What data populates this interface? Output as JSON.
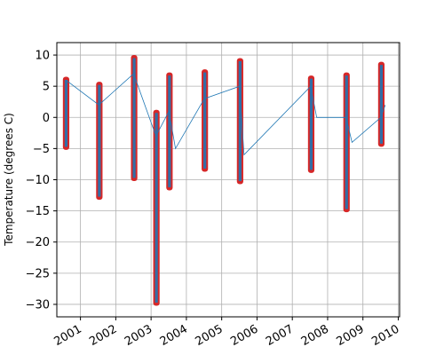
{
  "chart_data": {
    "type": "scatter",
    "title": "",
    "xlabel": "",
    "ylabel": "Temperature (degrees C)",
    "xlim": [
      "2000-05-01",
      "2010-01-15"
    ],
    "ylim": [
      -32,
      12
    ],
    "grid": true,
    "legend": "none",
    "colors": {
      "points": "#d62728",
      "line": "#1f77b4"
    },
    "x_ticks": [
      "2001",
      "2002",
      "2003",
      "2004",
      "2005",
      "2006",
      "2007",
      "2008",
      "2009",
      "2010"
    ],
    "y_ticks": [
      10,
      5,
      0,
      -5,
      -10,
      -15,
      -20,
      -25,
      -30
    ],
    "clusters": [
      {
        "x": "2000-08-05",
        "min": -5,
        "max": 6.3
      },
      {
        "x": "2001-07-15",
        "min": -13,
        "max": 5.5
      },
      {
        "x": "2002-07-10",
        "min": -10,
        "max": 9.8
      },
      {
        "x": "2003-02-25",
        "min": -30,
        "max": 1
      },
      {
        "x": "2003-07-10",
        "min": -11.5,
        "max": 7
      },
      {
        "x": "2004-07-10",
        "min": -8.5,
        "max": 7.5
      },
      {
        "x": "2005-07-10",
        "min": -10.5,
        "max": 9.3
      },
      {
        "x": "2007-07-15",
        "min": -8.7,
        "max": 6.5
      },
      {
        "x": "2008-07-15",
        "min": -15,
        "max": 7
      },
      {
        "x": "2009-07-10",
        "min": -4.5,
        "max": 8.7
      }
    ],
    "series_line": [
      {
        "x": "2000-08-01",
        "y": 6
      },
      {
        "x": "2001-07-10",
        "y": 2
      },
      {
        "x": "2002-07-05",
        "y": 7
      },
      {
        "x": "2003-02-20",
        "y": -3
      },
      {
        "x": "2003-07-05",
        "y": 1
      },
      {
        "x": "2003-09-10",
        "y": -5
      },
      {
        "x": "2004-07-05",
        "y": 3
      },
      {
        "x": "2005-07-05",
        "y": 5
      },
      {
        "x": "2005-08-20",
        "y": -6
      },
      {
        "x": "2007-07-10",
        "y": 5
      },
      {
        "x": "2007-09-10",
        "y": 0
      },
      {
        "x": "2008-07-10",
        "y": 0
      },
      {
        "x": "2008-09-10",
        "y": -4
      },
      {
        "x": "2009-07-05",
        "y": 0
      },
      {
        "x": "2009-08-20",
        "y": 2
      }
    ]
  }
}
